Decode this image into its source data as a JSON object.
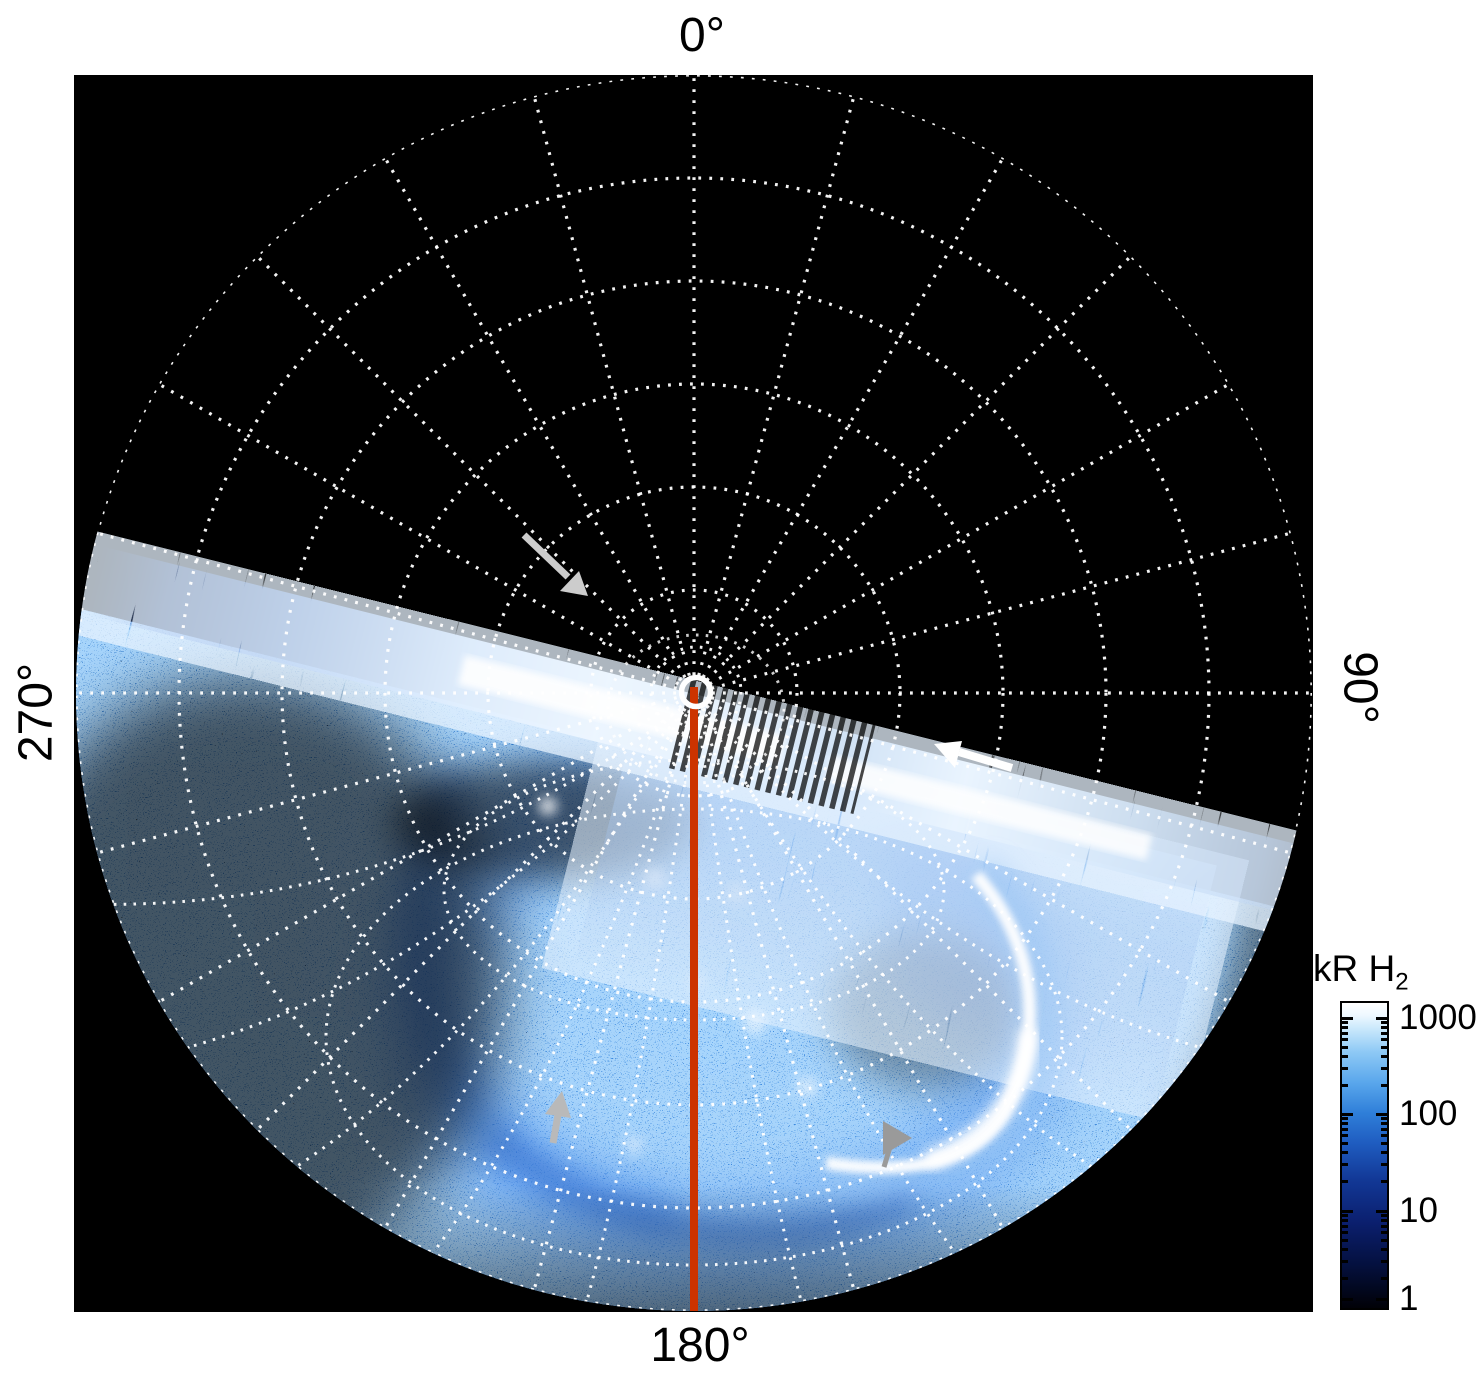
{
  "figure": {
    "description": "Polar projection image of H2 auroral emission with dotted coordinate grid",
    "angles": {
      "top": "0°",
      "right": "90°",
      "bottom": "180°",
      "left": "270°"
    },
    "colorbar": {
      "title_main": "kR H",
      "title_sub": "2",
      "tick_labels": [
        "1000",
        "100",
        "10",
        "1"
      ],
      "scale": "log",
      "top_color": "#ffffff",
      "mid_color": "#2f7fd9",
      "bottom_color": "#010107"
    },
    "colors": {
      "background": "#000000",
      "page": "#ffffff",
      "grid": "#ffffff",
      "meridian_line": "#cc3300",
      "emission_bright": "#ffffff",
      "emission_mid": "#2e6fd6",
      "arrow_white": "#ffffff",
      "arrow_light_gray": "#cccccc",
      "arrow_gray": "#9a9a9a"
    },
    "annotations": [
      "gray-arrow-upper-left",
      "white-arrow-right",
      "gray-arrow-lower-left",
      "gray-arrowhead-lower-right",
      "pole-ring-marker",
      "red-meridian-line"
    ]
  },
  "chart_data": {
    "type": "heatmap",
    "projection": "polar",
    "title": "",
    "angle_tick_labels": [
      "0°",
      "90°",
      "180°",
      "270°"
    ],
    "angle_spoke_step_deg": 15,
    "radial_rings": 6,
    "colorbar": {
      "title": "kR H2",
      "scale": "log",
      "tick_values": [
        1000,
        100,
        10,
        1
      ],
      "units": "kR"
    },
    "features": {
      "bright_band": "tilted bright smeared band running from left limb through the pole toward lower right",
      "bright_arc": "brightest white auroral arc crescent in lower-right quadrant",
      "diffuse_emission": "speckled blue emission filling lower half of disc",
      "meridian_marked_deg": 180,
      "pole_marker": "white ring at projection center"
    }
  }
}
